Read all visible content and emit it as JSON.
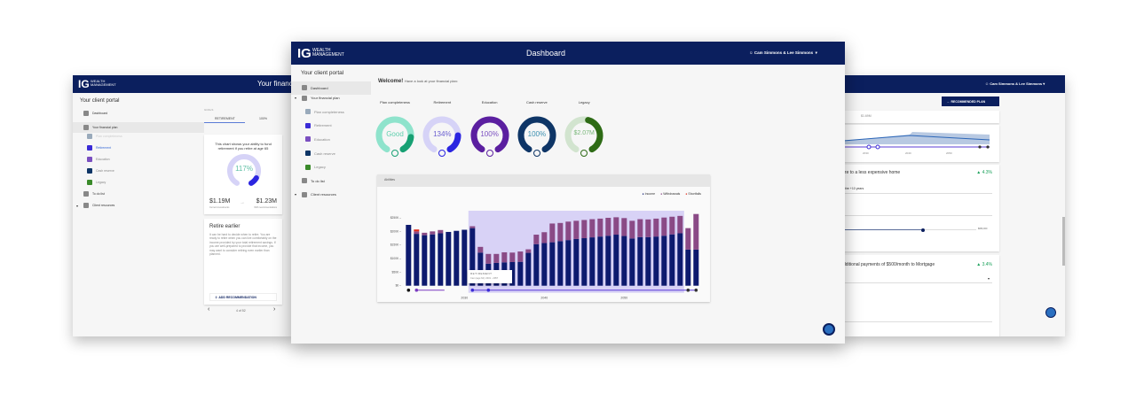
{
  "brand": {
    "logo_letters": "IG",
    "logo_text_1": "WEALTH",
    "logo_text_2": "MANAGEMENT",
    "navy": "#0b1f5e"
  },
  "user": {
    "name": "Cam Simmons & Lee Simmons"
  },
  "sidebar": {
    "title": "Your client portal",
    "items": [
      {
        "label": "Dashboard",
        "icon": "dashboard-icon",
        "level": 0
      },
      {
        "label": "Your financial plan",
        "icon": "person-icon",
        "level": 0,
        "expand": true
      },
      {
        "label": "Plan completeness",
        "icon": "people-icon",
        "level": 1
      },
      {
        "label": "Retirement",
        "icon": "retirement-icon",
        "level": 1
      },
      {
        "label": "Education",
        "icon": "graduation-cap-icon",
        "level": 1
      },
      {
        "label": "Cash reserve",
        "icon": "dollar-icon",
        "level": 1
      },
      {
        "label": "Legacy",
        "icon": "leaf-icon",
        "level": 1
      },
      {
        "label": "To do list",
        "icon": "clipboard-icon",
        "level": 0
      },
      {
        "label": "Client resources",
        "icon": "resources-icon",
        "level": 0,
        "expand": true
      }
    ]
  },
  "left_window": {
    "header_title": "Your financial",
    "goals_label": "GOALS",
    "tabs": [
      "RETIREMENT",
      "100%"
    ],
    "card_text": "This chart shows your ability to fund retirement if you retire at age 65",
    "gauge_value": "117%",
    "gauge_fraction": 0.9,
    "current_value": "$1.19M",
    "current_label": "Current investments",
    "with_value": "$1.23M",
    "with_label": "With recommendations",
    "rec_title": "Retire earlier",
    "rec_text": "It can be hard to decide when to retire. You are ready to retire when you can live comfortably on the income provided by your total retirement savings. If you are well-prepared to provide that income, you may want to consider retiring even earlier than planned.",
    "add_label": "ADD RECOMMENDATION",
    "pager": "4 of 52"
  },
  "center_window": {
    "header_title": "Dashboard",
    "welcome": "Welcome!",
    "welcome_sub": "Have a look at your financial plan:",
    "gauges": [
      {
        "label": "Plan completeness",
        "value": "Good",
        "track": "#8fe3cc",
        "accent": "#17a073",
        "text_color": "#5fcfad",
        "accent_fraction": 0.18,
        "icon": "people-icon"
      },
      {
        "label": "Retirement",
        "value": "134%",
        "track": "#d6d3f7",
        "accent": "#2b25e0",
        "text_color": "#6a5fd0",
        "accent_fraction": 0.2,
        "icon": "retirement-icon"
      },
      {
        "label": "Education",
        "value": "100%",
        "track": "#5b1fa0",
        "accent": "#5b1fa0",
        "text_color": "#7a4fc0",
        "accent_fraction": 1,
        "icon": "graduation-cap-icon"
      },
      {
        "label": "Cash reserve",
        "value": "100%",
        "track": "#0e3566",
        "accent": "#0e3566",
        "text_color": "#3a8fb0",
        "accent_fraction": 1,
        "icon": "dollar-icon"
      },
      {
        "label": "Legacy",
        "value": "$2.07M",
        "track": "#d2e4cf",
        "accent": "#2e6b16",
        "text_color": "#7ab87a",
        "accent_fraction": 0.45,
        "icon": "leaf-icon"
      }
    ],
    "chart_panel_title": "Abilities",
    "tooltip_title": "RETIREMENT",
    "tooltip_text": "Cam (age 64): 2031 - 2057"
  },
  "chart_data": {
    "type": "bar",
    "stacked": true,
    "title": "",
    "xlabel": "",
    "ylabel": "",
    "ylim": [
      0,
      250000
    ],
    "yticks": [
      "$0",
      "$50K",
      "$100K",
      "$150K",
      "$200K",
      "$250K"
    ],
    "xticks": [
      "2030",
      "2040",
      "2050"
    ],
    "legend_position": "top-right",
    "x": [
      2023,
      2024,
      2025,
      2026,
      2027,
      2028,
      2029,
      2030,
      2031,
      2032,
      2033,
      2034,
      2035,
      2036,
      2037,
      2038,
      2039,
      2040,
      2041,
      2042,
      2043,
      2044,
      2045,
      2046,
      2047,
      2048,
      2049,
      2050,
      2051,
      2052,
      2053,
      2054,
      2055,
      2056,
      2057,
      2058,
      2059
    ],
    "highlight": {
      "label": "RETIREMENT",
      "from": 2031,
      "to": 2057
    },
    "series": [
      {
        "name": "Income",
        "color": "#0d1a6e",
        "values": [
          224,
          191,
          186,
          189,
          193,
          198,
          202,
          206,
          212,
          122,
          81,
          84,
          86,
          87,
          88,
          121,
          153,
          157,
          160,
          164,
          168,
          172,
          175,
          178,
          181,
          184,
          188,
          183,
          174,
          179,
          179,
          181,
          184,
          189,
          193,
          133,
          133
        ]
      },
      {
        "name": "Withdrawals",
        "color": "#8a4a86",
        "values": [
          0,
          9,
          9,
          11,
          12,
          0,
          0,
          0,
          7,
          21,
          36,
          33,
          37,
          35,
          38,
          13,
          35,
          40,
          69,
          67,
          68,
          67,
          67,
          67,
          66,
          66,
          64,
          66,
          65,
          66,
          65,
          66,
          67,
          65,
          64,
          79,
          131
        ]
      },
      {
        "name": "Shortfalls",
        "color": "#e02a1a",
        "values": [
          0,
          7,
          0,
          0,
          0,
          0,
          0,
          0,
          0,
          0,
          0,
          0,
          0,
          0,
          0,
          0,
          0,
          0,
          0,
          0,
          0,
          0,
          0,
          0,
          0,
          0,
          0,
          0,
          0,
          0,
          0,
          0,
          0,
          0,
          0,
          0,
          0
        ]
      }
    ],
    "value_unit": "$K"
  },
  "right_window": {
    "button": "RECOMMENDED PLAN",
    "tab_value": "$1.69M",
    "mini_xticks": [
      "2030",
      "2040",
      "2050"
    ],
    "rec1_title": "ize to a less expensive home",
    "rec1_delta": "4.3%",
    "rec1_field": "etire +10 years",
    "rec1_slider_max": "$650,000",
    "rec1_slider_fraction": 0.6,
    "rec2_title": "dditional payments of $500/month to Mortgage",
    "rec2_delta": "3.4%",
    "delta_color": "#1aa05a"
  }
}
